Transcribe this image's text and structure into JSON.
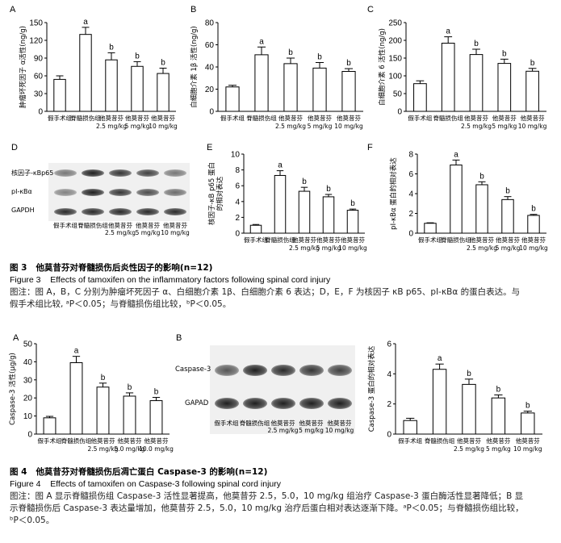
{
  "figure3": {
    "caption_cn_label": "图 3",
    "caption_cn_title": "他莫昔芬对脊髓损伤后炎性因子的影响(n=12)",
    "caption_en_label": "Figure 3",
    "caption_en_title": "Effects of tamoxifen on the inflammatory factors following spinal cord injury",
    "note_line1": "图注：图 A，B，C 分别为肿瘤坏死因子 α、白细胞介素 1β、白细胞介素 6 表达；D，E，F 为核因子 κB p65、pI-κBα 的蛋白表达。与",
    "note_line2": "假手术组比较, ᵃP＜0.05；与脊髓损伤组比较，ᵇP＜0.05。"
  },
  "figure4": {
    "caption_cn_label": "图 4",
    "caption_cn_title": "他莫昔芬对脊髓损伤后凋亡蛋白 Caspase-3 的影响(n=12)",
    "caption_en_label": "Figure 4",
    "caption_en_title": "Effects of tamoxifen on Caspase-3 following spinal cord injury",
    "note_line1": "图注：图 A 显示脊髓损伤组 Caspase-3 活性显著提高，他莫昔芬 2.5，5.0，10 mg/kg 组治疗 Caspase-3 蛋白酶活性显著降低；B 显",
    "note_line2": "示脊髓损伤后 Caspase-3 表达量增加，他莫昔芬 2.5，5.0，10 mg/kg 治疗后蛋白相对表达逐渐下降。ᵃP＜0.05；与脊髓损伤组比较，",
    "note_line3": "ᵇP＜0.05。"
  },
  "panel_letters": {
    "A": "A",
    "B": "B",
    "C": "C",
    "D": "D",
    "E": "E",
    "F": "F",
    "A2": "A",
    "B2": "B"
  },
  "blot_d": {
    "rows": [
      "核因子-κBp65",
      "pI-κBα",
      "GAPDH"
    ],
    "lanes": [
      "假手术组",
      "脊髓损伤组",
      "他莫昔芬\n2.5 mg/kg",
      "他莫昔芬\n5 mg/kg",
      "他莫昔芬\n10 mg/kg"
    ]
  },
  "blot_b2": {
    "rows": [
      "Caspase-3",
      "GAPAD"
    ],
    "lanes": [
      "假手术组",
      "脊髓损伤组",
      "他莫昔芬\n2.5 mg/kg",
      "他莫昔芬\n5 mg/kg",
      "他莫昔芬\n10 mg/kg"
    ]
  },
  "chart_data": [
    {
      "id": "A",
      "type": "bar",
      "ylabel": "肿瘤坏死因子 α活性(ng/g)",
      "ylim": [
        0,
        150
      ],
      "yticks": [
        0,
        30,
        60,
        90,
        120,
        150
      ],
      "categories": [
        "假手术组",
        "脊髓损伤组",
        "他莫昔芬\n2.5 mg/kg",
        "他莫昔芬\n5 mg/kg",
        "他莫昔芬\n10 mg/kg"
      ],
      "values": [
        54,
        130,
        87,
        76,
        64
      ],
      "errors": [
        6,
        12,
        12,
        8,
        9
      ],
      "labels": [
        "",
        "a",
        "b",
        "b",
        "b"
      ]
    },
    {
      "id": "B",
      "type": "bar",
      "ylabel": "白细胞介素 1β 活性(ng/g)",
      "ylim": [
        0,
        80
      ],
      "yticks": [
        0,
        20,
        40,
        60,
        80
      ],
      "categories": [
        "假手术组",
        "脊髓损伤组",
        "他莫昔芬\n2.5 mg/kg",
        "他莫昔芬\n5 mg/kg",
        "他莫昔芬\n10 mg/kg"
      ],
      "values": [
        22,
        51,
        43,
        39,
        36
      ],
      "errors": [
        1.5,
        7,
        5,
        5,
        2.5
      ],
      "labels": [
        "",
        "a",
        "b",
        "b",
        "b"
      ]
    },
    {
      "id": "C",
      "type": "bar",
      "ylabel": "白细胞介素 6 活性(ng/g)",
      "ylim": [
        0,
        250
      ],
      "yticks": [
        0,
        50,
        100,
        150,
        200,
        250
      ],
      "categories": [
        "假手术组",
        "脊髓损伤组",
        "他莫昔芬\n2.5 mg/kg",
        "他莫昔芬\n5 mg/kg",
        "他莫昔芬\n10 mg/kg"
      ],
      "values": [
        78,
        192,
        160,
        135,
        113
      ],
      "errors": [
        8,
        18,
        15,
        12,
        8
      ],
      "labels": [
        "",
        "a",
        "b",
        "b",
        "b"
      ]
    },
    {
      "id": "E",
      "type": "bar",
      "ylabel": "核因子-κB p65 蛋白\n的相对表达",
      "ylim": [
        0,
        10
      ],
      "yticks": [
        0,
        2,
        4,
        6,
        8,
        10
      ],
      "categories": [
        "假手术组",
        "脊髓损伤组",
        "他莫昔芬\n2.5 mg/kg",
        "他莫昔芬\n5 mg/kg",
        "他莫昔芬\n10 mg/kg"
      ],
      "values": [
        1.0,
        7.3,
        5.3,
        4.6,
        2.9
      ],
      "errors": [
        0.1,
        0.6,
        0.5,
        0.3,
        0.15
      ],
      "labels": [
        "",
        "a",
        "b",
        "b",
        "b"
      ]
    },
    {
      "id": "F",
      "type": "bar",
      "ylabel": "pI-κBα 蛋白的相对表达",
      "ylim": [
        0,
        8
      ],
      "yticks": [
        0,
        2,
        4,
        6,
        8
      ],
      "categories": [
        "假手术组",
        "脊髓损伤组",
        "他莫昔芬\n2.5 mg/kg",
        "他莫昔芬\n5 mg/kg",
        "他莫昔芬\n10 mg/kg"
      ],
      "values": [
        1.0,
        6.9,
        4.9,
        3.4,
        1.8
      ],
      "errors": [
        0.05,
        0.5,
        0.3,
        0.3,
        0.1
      ],
      "labels": [
        "",
        "a",
        "b",
        "b",
        "b"
      ]
    },
    {
      "id": "A2",
      "type": "bar",
      "ylabel": "Caspase-3 活性(μg/g)",
      "ylim": [
        0,
        50
      ],
      "yticks": [
        0,
        10,
        20,
        30,
        40,
        50
      ],
      "categories": [
        "假手术组",
        "脊髓损伤组",
        "他莫昔芬\n2.5 mg/kg",
        "他莫昔芬\n5.0 mg/kg",
        "他莫昔芬\n10.0 mg/kg"
      ],
      "values": [
        9,
        39.5,
        26,
        21,
        18.5
      ],
      "errors": [
        0.8,
        3.5,
        2.2,
        1.8,
        1.8
      ],
      "labels": [
        "",
        "a",
        "b",
        "b",
        "b"
      ]
    },
    {
      "id": "B2",
      "type": "bar",
      "ylabel": "Caspase-3 蛋白的相对表达",
      "ylim": [
        0,
        6
      ],
      "yticks": [
        0,
        2,
        4,
        6
      ],
      "categories": [
        "假手术组",
        "脊髓损伤组",
        "他莫昔芬\n2.5 mg/kg",
        "他莫昔芬\n5 mg/kg",
        "他莫昔芬\n10 mg/kg"
      ],
      "values": [
        0.9,
        4.3,
        3.3,
        2.4,
        1.4
      ],
      "errors": [
        0.15,
        0.35,
        0.35,
        0.2,
        0.12
      ],
      "labels": [
        "",
        "a",
        "b",
        "b",
        "b"
      ]
    }
  ]
}
